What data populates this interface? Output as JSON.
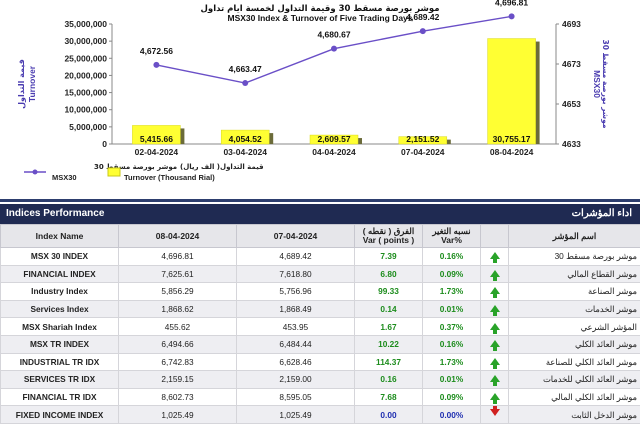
{
  "chart_data": {
    "type": "bar",
    "title_ar": "موشر بورصة مسقط 30 وقيمة التداول لخمسة ايام تداول",
    "title": "MSX30 Index & Turnover of Five Trading Days",
    "categories": [
      "02-04-2024",
      "03-04-2024",
      "04-04-2024",
      "07-04-2024",
      "08-04-2024"
    ],
    "series": [
      {
        "name": "Turnover (Thousand Rial)",
        "name_ar": "قيمة التداول( الف ريال)",
        "type": "bar",
        "axis": "left",
        "values": [
          5415.66,
          4054.52,
          2609.57,
          2151.52,
          30755.17
        ],
        "labels": [
          "5,415.66",
          "4,054.52",
          "2,609.57",
          "2,151.52",
          "30,755.17"
        ]
      },
      {
        "name": "MSX30",
        "name_ar": "موشر بورصة مسقط 30",
        "type": "line",
        "axis": "right",
        "values": [
          4672.56,
          4663.47,
          4680.67,
          4689.42,
          4696.81
        ],
        "labels": [
          "4,672.56",
          "4,663.47",
          "4,680.67",
          "4,689.42",
          "4,696.81"
        ]
      }
    ],
    "ylabel_left": "Turnover",
    "ylabel_left_ar": "قيمة التداول",
    "ylabel_right": "MSX30",
    "ylabel_right_ar": "موشر بورصة مسقط 30",
    "ylim_left": [
      0,
      35000000
    ],
    "yticks_left": [
      "0",
      "5,000,000",
      "10,000,000",
      "15,000,000",
      "20,000,000",
      "25,000,000",
      "30,000,000",
      "35,000,000"
    ],
    "ylim_right": [
      4633,
      4693
    ],
    "yticks_right": [
      "4633",
      "4653",
      "4673",
      "4693"
    ],
    "grid": false,
    "legend": "bottom",
    "colors": {
      "bar": "#ffff33",
      "bar_shadow": "#6b6b3a",
      "line": "#6a4fc7"
    }
  },
  "section": {
    "title": "Indices Performance",
    "title_ar": "اداء المؤشرات"
  },
  "table": {
    "headers": {
      "index_name": "Index Name",
      "date1": "08-04-2024",
      "date2": "07-04-2024",
      "var_ar": "الفرق ( نقطه )",
      "var": "Var ( points )",
      "varp_ar": "نسبه التغير",
      "varp": "Var%",
      "name_ar": "اسم المؤشر"
    },
    "rows": [
      {
        "name": "MSX 30 INDEX",
        "v1": "4,696.81",
        "v2": "4,689.42",
        "var": "7.39",
        "varp": "0.16%",
        "dir": "up",
        "name_ar": "موشر بورصة مسقط 30"
      },
      {
        "name": "FINANCIAL INDEX",
        "v1": "7,625.61",
        "v2": "7,618.80",
        "var": "6.80",
        "varp": "0.09%",
        "dir": "up",
        "name_ar": "موشر القطاع المالي"
      },
      {
        "name": "Industry Index",
        "v1": "5,856.29",
        "v2": "5,756.96",
        "var": "99.33",
        "varp": "1.73%",
        "dir": "up",
        "name_ar": "موشر الصناعة"
      },
      {
        "name": "Services Index",
        "v1": "1,868.62",
        "v2": "1,868.49",
        "var": "0.14",
        "varp": "0.01%",
        "dir": "up",
        "name_ar": "موشر الخدمات"
      },
      {
        "name": "MSX Shariah Index",
        "v1": "455.62",
        "v2": "453.95",
        "var": "1.67",
        "varp": "0.37%",
        "dir": "up",
        "name_ar": "المؤشر الشرعي"
      },
      {
        "name": "MSX TR INDEX",
        "v1": "6,494.66",
        "v2": "6,484.44",
        "var": "10.22",
        "varp": "0.16%",
        "dir": "up",
        "name_ar": "موشر العائد الكلي"
      },
      {
        "name": "INDUSTRIAL TR IDX",
        "v1": "6,742.83",
        "v2": "6,628.46",
        "var": "114.37",
        "varp": "1.73%",
        "dir": "up",
        "name_ar": "موشر العائد الكلي للصناعة"
      },
      {
        "name": "SERVICES TR IDX",
        "v1": "2,159.15",
        "v2": "2,159.00",
        "var": "0.16",
        "varp": "0.01%",
        "dir": "up",
        "name_ar": "موشر العائد الكلي للخدمات"
      },
      {
        "name": "FINANCIAL TR IDX",
        "v1": "8,602.73",
        "v2": "8,595.05",
        "var": "7.68",
        "varp": "0.09%",
        "dir": "up",
        "name_ar": "موشر العائد الكلي المالي"
      },
      {
        "name": "FIXED INCOME INDEX",
        "v1": "1,025.49",
        "v2": "1,025.49",
        "var": "0.00",
        "varp": "0.00%",
        "dir": "down",
        "name_ar": "موشر الدخل الثابت"
      }
    ]
  }
}
